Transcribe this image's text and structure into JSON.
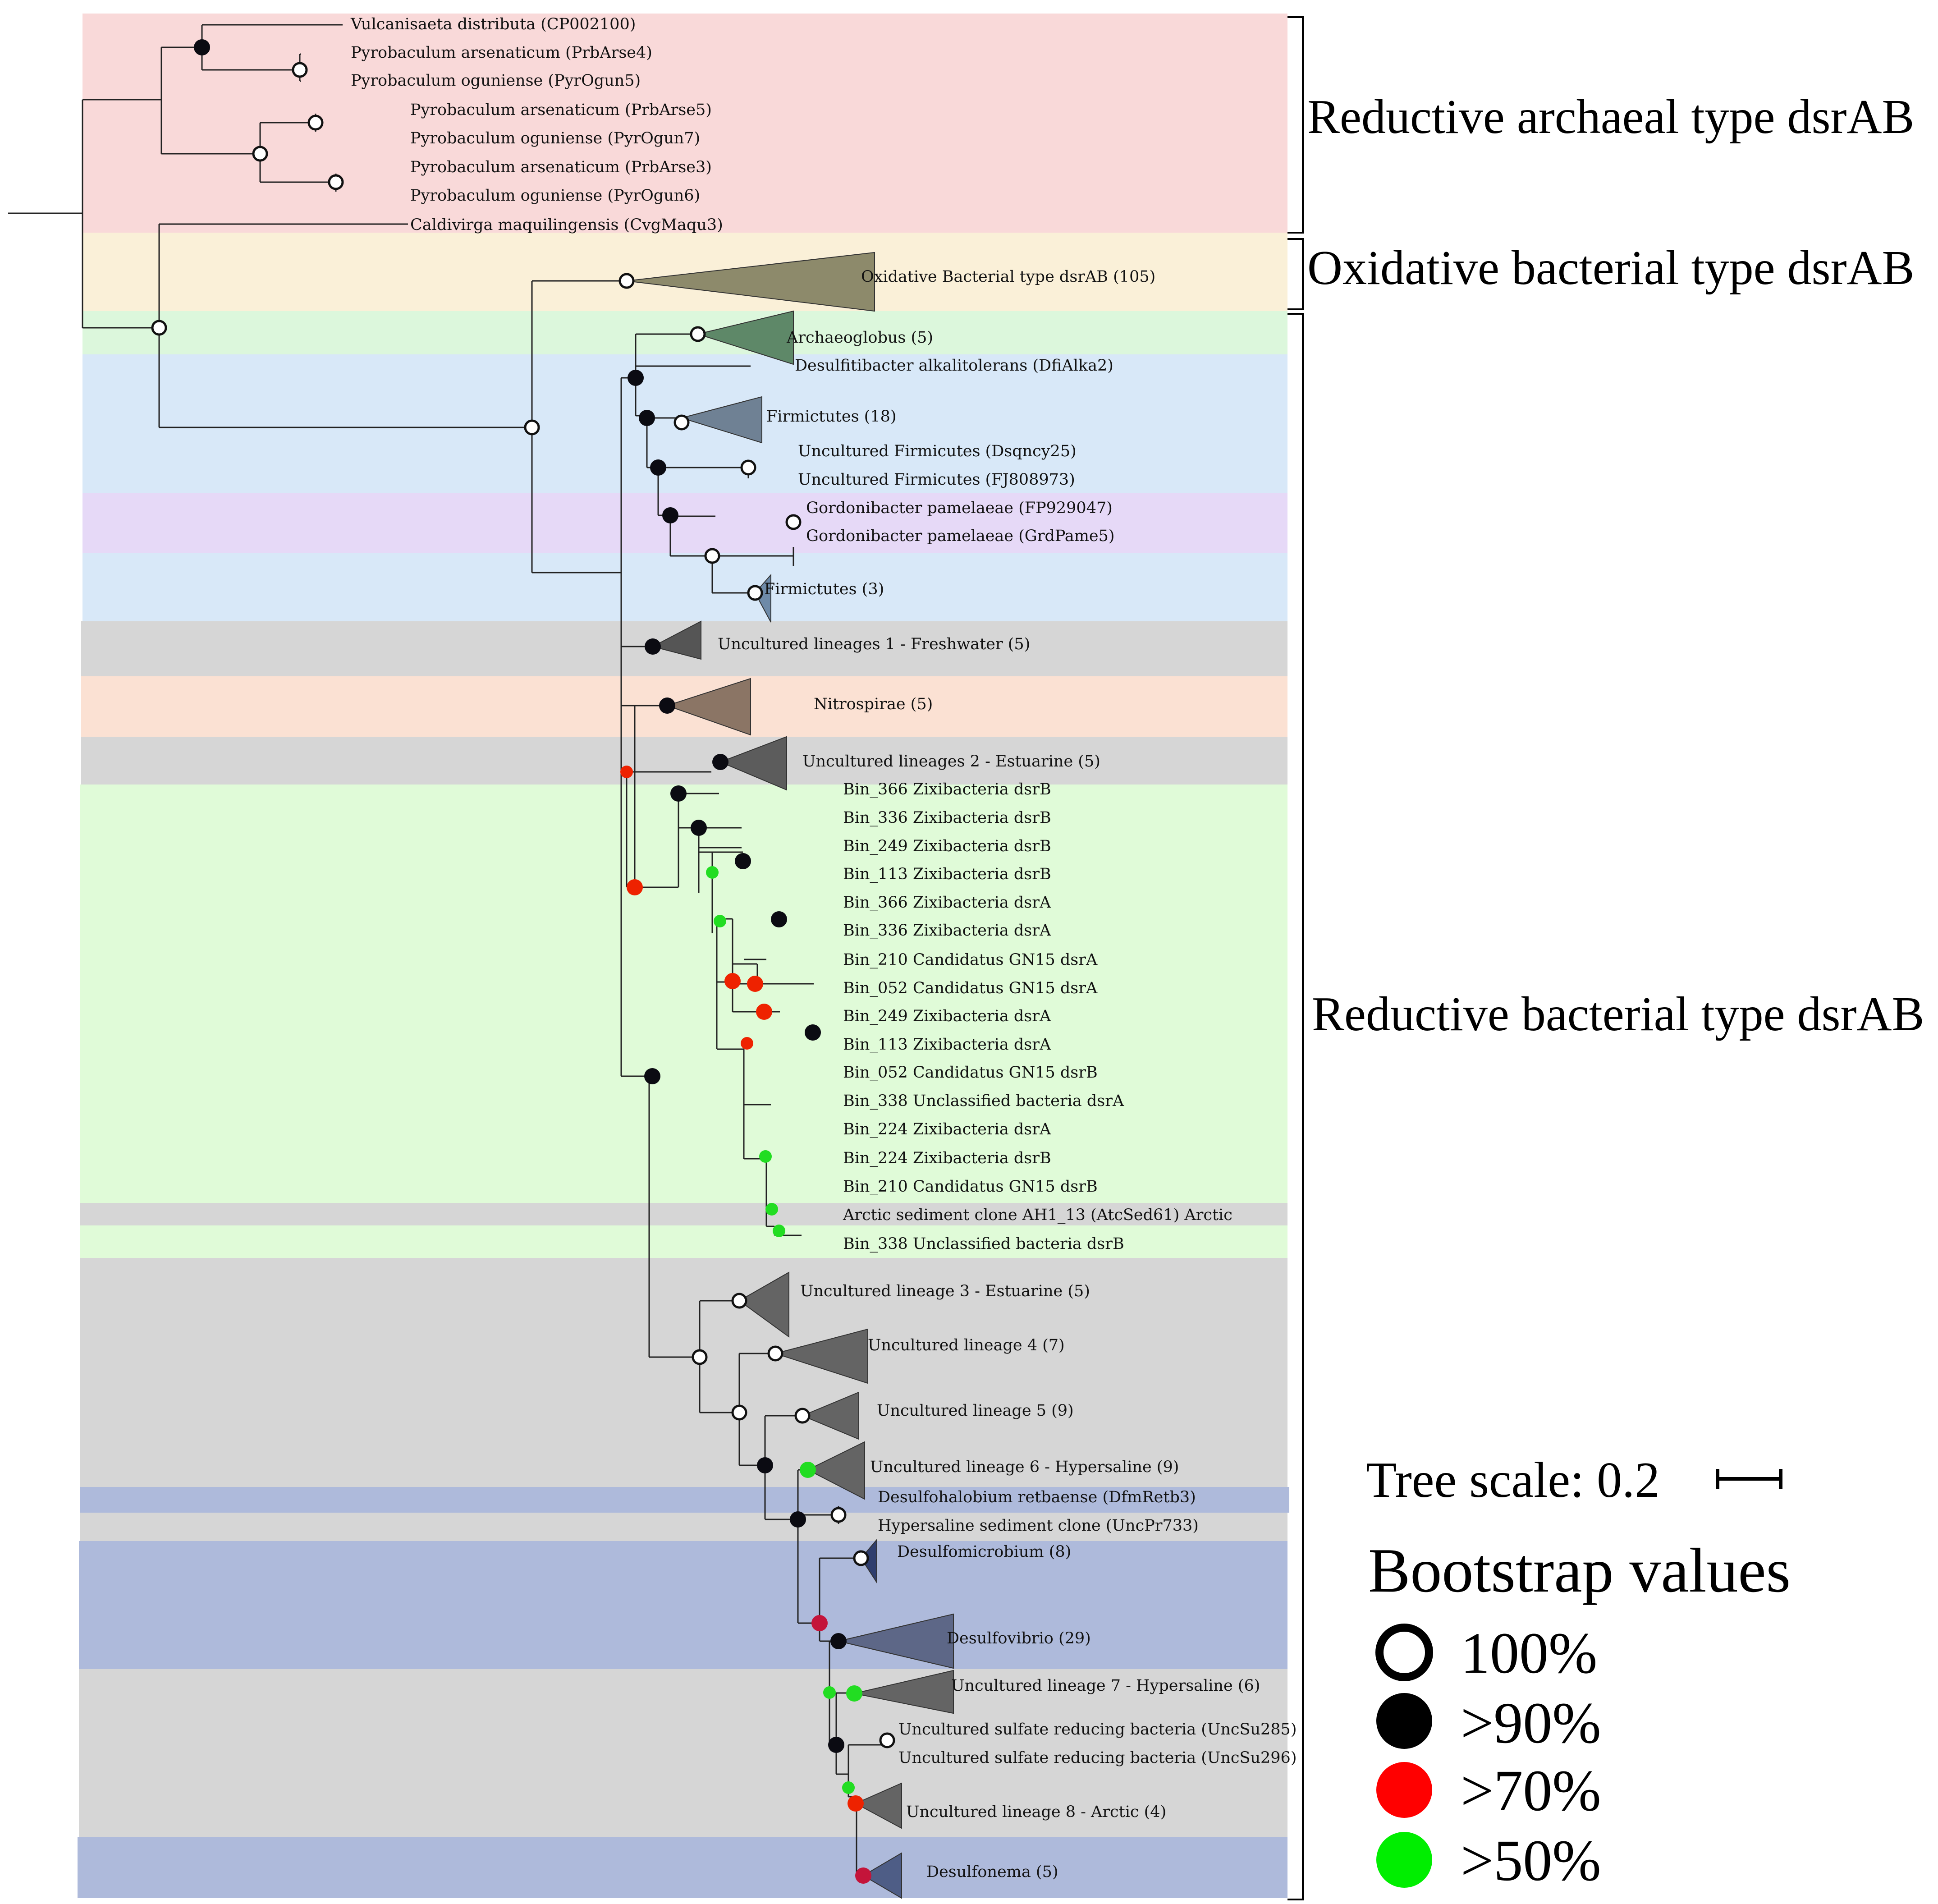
{
  "groups": {
    "reductive_archaeal": "Reductive archaeal type dsrAB",
    "oxidative_bacterial": "Oxidative bacterial type dsrAB",
    "reductive_bacterial": "Reductive bacterial type dsrAB"
  },
  "scale": {
    "label": "Tree scale: 0.2"
  },
  "legend": {
    "title": "Bootstrap values",
    "items": [
      {
        "label": "100%",
        "style": "open",
        "color": "#000000"
      },
      {
        "label": ">90%",
        "style": "filled",
        "color": "#000000"
      },
      {
        "label": ">70%",
        "style": "filled",
        "color": "#ff0000"
      },
      {
        "label": ">50%",
        "style": "filled",
        "color": "#00ee00"
      }
    ]
  },
  "leaves": [
    "Vulcanisaeta distributa (CP002100)",
    "Pyrobaculum arsenaticum (PrbArse4)",
    "Pyrobaculum oguniense (PyrOgun5)",
    "Pyrobaculum arsenaticum (PrbArse5)",
    "Pyrobaculum oguniense (PyrOgun7)",
    "Pyrobaculum arsenaticum (PrbArse3)",
    "Pyrobaculum oguniense (PyrOgun6)",
    "Caldivirga maquilingensis (CvgMaqu3)",
    "Oxidative Bacterial type dsrAB (105)",
    "Archaeoglobus (5)",
    "Desulfitibacter alkalitolerans (DfiAlka2)",
    "Firmictutes (18)",
    "Uncultured Firmicutes (Dsqncy25)",
    "Uncultured Firmicutes (FJ808973)",
    "Gordonibacter pamelaeae (FP929047)",
    "Gordonibacter pamelaeae (GrdPame5)",
    "Firmictutes (3)",
    "Uncultured lineages 1 - Freshwater (5)",
    "Nitrospirae (5)",
    "Uncultured lineages 2 - Estuarine (5)",
    "Bin_366 Zixibacteria dsrB",
    "Bin_336 Zixibacteria dsrB",
    "Bin_249 Zixibacteria dsrB",
    "Bin_113 Zixibacteria dsrB",
    "Bin_366 Zixibacteria dsrA",
    "Bin_336 Zixibacteria dsrA",
    "Bin_210 Candidatus GN15 dsrA",
    "Bin_052 Candidatus GN15 dsrA",
    "Bin_249 Zixibacteria dsrA",
    "Bin_113 Zixibacteria dsrA",
    "Bin_052 Candidatus GN15 dsrB",
    "Bin_338 Unclassified bacteria dsrA",
    "Bin_224 Zixibacteria dsrA",
    "Bin_224 Zixibacteria dsrB",
    "Bin_210 Candidatus GN15 dsrB",
    "Arctic sediment clone AH1_13 (AtcSed61) Arctic",
    "Bin_338 Unclassified bacteria dsrB",
    "Uncultured lineage 3 - Estuarine (5)",
    "Uncultured lineage 4 (7)",
    "Uncultured lineage 5 (9)",
    "Uncultured lineage 6 - Hypersaline (9)",
    "Desulfohalobium retbaense (DfmRetb3)",
    "Hypersaline sediment clone (UncPr733)",
    "Desulfomicrobium (8)",
    "Desulfovibrio (29)",
    "Uncultured lineage 7 - Hypersaline (6)",
    "Uncultured sulfate reducing bacteria (UncSu285)",
    "Uncultured sulfate reducing bacteria (UncSu296)",
    "Uncultured lineage 8 - Arctic (4)",
    "Desulfonema (5)"
  ],
  "colors": {
    "archaeal_band": "#f9d9d9",
    "oxidative_band": "#faf0d8",
    "archaeoglobus_band": "#dcf7dc",
    "firmicutes_band": "#d8e8f8",
    "gordonibacter_band": "#e6d9f7",
    "uncultured_band": "#d6d6d6",
    "nitrospirae_band": "#fbe1d3",
    "zixi_band": "#e0fbd8",
    "desulfo_band": "#aebadb"
  }
}
